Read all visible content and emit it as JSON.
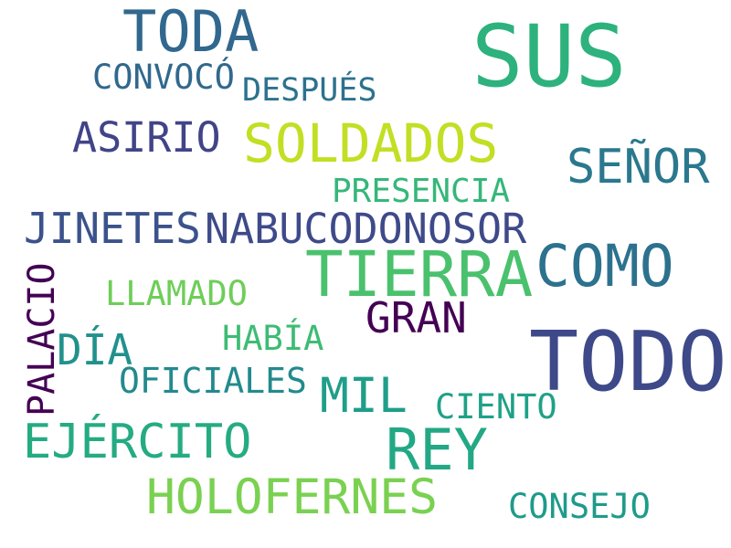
{
  "words": [
    {
      "text": "TODA",
      "color": "#31688e"
    },
    {
      "text": "SUS",
      "color": "#2db27d"
    },
    {
      "text": "CONVOCÓ",
      "color": "#31688e"
    },
    {
      "text": "DESPUÉS",
      "color": "#2c728e"
    },
    {
      "text": "ASIRIO",
      "color": "#414487"
    },
    {
      "text": "SOLDADOS",
      "color": "#c2df23"
    },
    {
      "text": "SEÑOR",
      "color": "#2a788e"
    },
    {
      "text": "PRESENCIA",
      "color": "#35b779"
    },
    {
      "text": "JINETES",
      "color": "#3b528b"
    },
    {
      "text": "NABUCODONOSOR",
      "color": "#3e4a89"
    },
    {
      "text": "TIERRA",
      "color": "#4ac16d"
    },
    {
      "text": "COMO",
      "color": "#2c728e"
    },
    {
      "text": "PALACIO",
      "color": "#440154"
    },
    {
      "text": "LLAMADO",
      "color": "#6ece58"
    },
    {
      "text": "GRAN",
      "color": "#440154"
    },
    {
      "text": "DÍA",
      "color": "#21918c"
    },
    {
      "text": "HABÍA",
      "color": "#3dbc74"
    },
    {
      "text": "TODO",
      "color": "#3e4989"
    },
    {
      "text": "OFICIALES",
      "color": "#238a8d"
    },
    {
      "text": "MIL",
      "color": "#1f9e89"
    },
    {
      "text": "CIENTO",
      "color": "#1fa187"
    },
    {
      "text": "EJÉRCITO",
      "color": "#25ab82"
    },
    {
      "text": "REY",
      "color": "#22a884"
    },
    {
      "text": "HOLOFERNES",
      "color": "#7ad151"
    },
    {
      "text": "CONSEJO",
      "color": "#1e9b8a"
    }
  ]
}
